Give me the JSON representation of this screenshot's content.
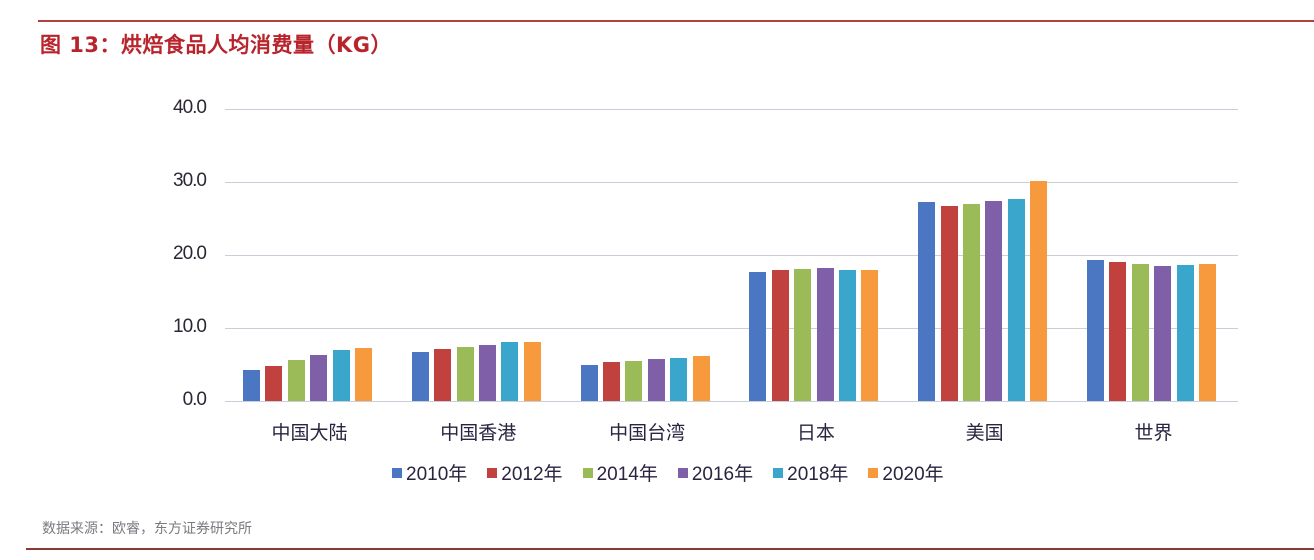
{
  "header": {
    "title": "图 13：烘焙食品人均消费量（KG）"
  },
  "footer": {
    "source": "数据来源：欧睿，东方证券研究所"
  },
  "chart_data": {
    "type": "bar",
    "title": "图 13：烘焙食品人均消费量（KG）",
    "xlabel": "",
    "ylabel": "",
    "ylim": [
      0,
      40
    ],
    "yticks": [
      "0.0",
      "10.0",
      "20.0",
      "30.0",
      "40.0"
    ],
    "grid": true,
    "legend_position": "bottom",
    "categories": [
      "中国大陆",
      "中国香港",
      "中国台湾",
      "日本",
      "美国",
      "世界"
    ],
    "series": [
      {
        "name": "2010年",
        "color": "#4a76c2",
        "values": [
          4.2,
          6.7,
          5.0,
          17.7,
          27.3,
          19.3
        ]
      },
      {
        "name": "2012年",
        "color": "#c0413d",
        "values": [
          4.8,
          7.1,
          5.3,
          18.0,
          26.7,
          19.1
        ]
      },
      {
        "name": "2014年",
        "color": "#9bbb59",
        "values": [
          5.6,
          7.4,
          5.5,
          18.1,
          27.0,
          18.8
        ]
      },
      {
        "name": "2016年",
        "color": "#7f5fa8",
        "values": [
          6.3,
          7.7,
          5.7,
          18.2,
          27.4,
          18.5
        ]
      },
      {
        "name": "2018年",
        "color": "#3ba6cc",
        "values": [
          7.0,
          8.1,
          5.9,
          18.0,
          27.7,
          18.6
        ]
      },
      {
        "name": "2020年",
        "color": "#f79a3e",
        "values": [
          7.3,
          8.1,
          6.1,
          18.0,
          30.1,
          18.7
        ]
      }
    ],
    "source": "数据来源：欧睿，东方证券研究所"
  }
}
